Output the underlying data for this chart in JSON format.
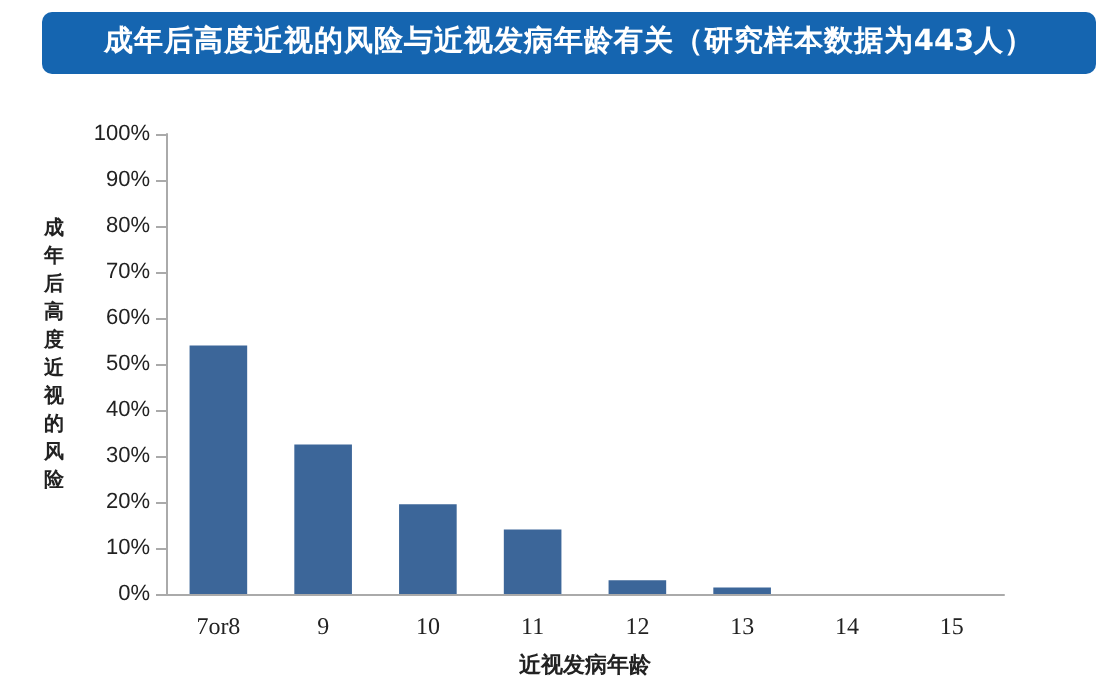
{
  "chart_data": {
    "type": "bar",
    "title": "成年后高度近视的风险与近视发病年龄有关（研究样本数据为443人）",
    "xlabel": "近视发病年龄",
    "ylabel": "成年后高度近视的风险",
    "categories": [
      "7or8",
      "9",
      "10",
      "11",
      "12",
      "13",
      "14",
      "15"
    ],
    "values": [
      54,
      32.5,
      19.5,
      14,
      3,
      1.4,
      0,
      0
    ],
    "color": "#3c6699",
    "ylim": [
      0,
      100
    ],
    "yticks": [
      {
        "value": 0,
        "label": "0%"
      },
      {
        "value": 10,
        "label": "10%"
      },
      {
        "value": 20,
        "label": "20%"
      },
      {
        "value": 30,
        "label": "30%"
      },
      {
        "value": 40,
        "label": "40%"
      },
      {
        "value": 50,
        "label": "50%"
      },
      {
        "value": 60,
        "label": "60%"
      },
      {
        "value": 70,
        "label": "70%"
      },
      {
        "value": 80,
        "label": "80%"
      },
      {
        "value": 90,
        "label": "90%"
      },
      {
        "value": 100,
        "label": "100%"
      }
    ],
    "grid": false
  }
}
